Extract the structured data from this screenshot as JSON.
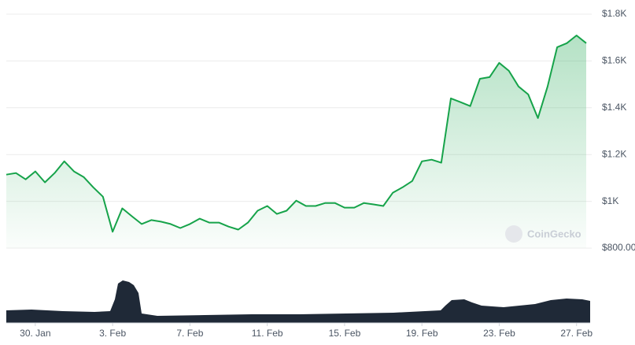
{
  "chart_data": {
    "type": "area",
    "watermark": "CoinGecko",
    "color": "#16a34a",
    "grid": true,
    "values": [
      1114,
      1121,
      1094,
      1128,
      1081,
      1121,
      1171,
      1128,
      1104,
      1060,
      1020,
      870,
      970,
      936,
      903,
      920,
      913,
      903,
      886,
      903,
      926,
      909,
      909,
      892,
      879,
      909,
      960,
      980,
      946,
      960,
      1003,
      980,
      980,
      993,
      993,
      973,
      973,
      993,
      987,
      980,
      1037,
      1060,
      1087,
      1171,
      1178,
      1165,
      1440,
      1424,
      1407,
      1524,
      1531,
      1592,
      1558,
      1491,
      1457,
      1356,
      1491,
      1659,
      1676,
      1709,
      1676
    ],
    "xlim": [
      0,
      60
    ],
    "xticks": [
      {
        "value": 3,
        "label": "30. Jan"
      },
      {
        "value": 11,
        "label": "3. Feb"
      },
      {
        "value": 19,
        "label": "7. Feb"
      },
      {
        "value": 27,
        "label": "11. Feb"
      },
      {
        "value": 35,
        "label": "15. Feb"
      },
      {
        "value": 43,
        "label": "19. Feb"
      },
      {
        "value": 51,
        "label": "23. Feb"
      },
      {
        "value": 59,
        "label": "27. Feb"
      }
    ],
    "ylim": [
      800,
      1800
    ],
    "yticks": [
      {
        "value": 1800,
        "label": "$1.8K"
      },
      {
        "value": 1600,
        "label": "$1.6K"
      },
      {
        "value": 1400,
        "label": "$1.4K"
      },
      {
        "value": 1200,
        "label": "$1.2K"
      },
      {
        "value": 1000,
        "label": "$1K"
      },
      {
        "value": 800,
        "label": "$800.00"
      }
    ]
  }
}
